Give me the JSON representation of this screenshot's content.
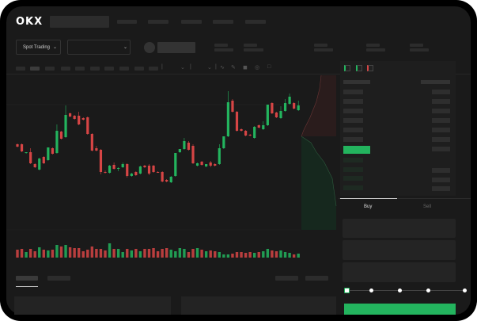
{
  "header": {
    "logo": "OKX"
  },
  "controls": {
    "market_select": "Spot Trading",
    "pair_select": ""
  },
  "order_form": {
    "tabs": [
      "Buy",
      "Sell"
    ],
    "active_tab": "Buy",
    "slider_percent": 0
  },
  "colors": {
    "up": "#23b45e",
    "down": "#d64545",
    "background": "#1a1a1a",
    "bezel": "#000000"
  },
  "icons": [
    "chevron-down-icon",
    "indicator-icon",
    "draw-icon",
    "camera-icon",
    "settings-icon",
    "fullscreen-icon",
    "orderbook-both-icon",
    "orderbook-bids-icon",
    "orderbook-asks-icon"
  ],
  "chart_data": {
    "type": "candlestick",
    "candles_ohlc": [
      [
        118,
        119,
        114,
        115
      ],
      [
        118,
        119,
        108,
        109
      ],
      [
        107,
        108,
        106,
        108
      ],
      [
        108,
        113,
        93,
        94
      ],
      [
        93,
        94,
        88,
        89
      ],
      [
        86,
        101,
        85,
        100
      ],
      [
        102,
        103,
        93,
        94
      ],
      [
        98,
        114,
        97,
        114
      ],
      [
        113,
        114,
        105,
        106
      ],
      [
        107,
        143,
        106,
        135
      ],
      [
        134,
        135,
        124,
        125
      ],
      [
        127,
        167,
        126,
        155
      ],
      [
        157,
        158,
        152,
        153
      ],
      [
        154,
        155,
        149,
        150
      ],
      [
        154,
        159,
        142,
        143
      ],
      [
        151,
        152,
        148,
        149
      ],
      [
        152,
        153,
        130,
        131
      ],
      [
        131,
        132,
        109,
        110
      ],
      [
        113,
        116,
        109,
        110
      ],
      [
        111,
        112,
        80,
        83
      ],
      [
        83,
        85,
        81,
        82
      ],
      [
        82,
        92,
        81,
        91
      ],
      [
        92,
        95,
        86,
        87
      ],
      [
        87,
        89,
        84,
        88
      ],
      [
        89,
        95,
        88,
        93
      ],
      [
        93,
        94,
        76,
        78
      ],
      [
        78,
        82,
        77,
        81
      ],
      [
        83,
        84,
        78,
        79
      ],
      [
        81,
        91,
        80,
        90
      ],
      [
        91,
        92,
        88,
        89
      ],
      [
        91,
        93,
        79,
        81
      ],
      [
        91,
        92,
        82,
        83
      ],
      [
        83,
        84,
        82,
        82
      ],
      [
        83,
        84,
        70,
        71
      ],
      [
        73,
        74,
        70,
        71
      ],
      [
        70,
        78,
        69,
        77
      ],
      [
        78,
        107,
        77,
        107
      ],
      [
        108,
        112,
        107,
        112
      ],
      [
        112,
        126,
        111,
        122
      ],
      [
        120,
        122,
        110,
        111
      ],
      [
        116,
        118,
        93,
        94
      ],
      [
        91,
        95,
        90,
        94
      ],
      [
        96,
        97,
        91,
        92
      ],
      [
        90,
        93,
        89,
        93
      ],
      [
        95,
        97,
        89,
        91
      ],
      [
        93,
        94,
        90,
        91
      ],
      [
        93,
        118,
        92,
        113
      ],
      [
        113,
        128,
        112,
        128
      ],
      [
        128,
        185,
        127,
        171
      ],
      [
        173,
        175,
        158,
        159
      ],
      [
        159,
        160,
        134,
        135
      ],
      [
        137,
        138,
        134,
        135
      ],
      [
        135,
        136,
        128,
        129
      ],
      [
        130,
        131,
        128,
        129
      ],
      [
        126,
        141,
        125,
        140
      ],
      [
        142,
        143,
        138,
        139
      ],
      [
        137,
        147,
        136,
        142
      ],
      [
        142,
        168,
        141,
        168
      ],
      [
        170,
        171,
        156,
        157
      ],
      [
        158,
        159,
        151,
        152
      ],
      [
        151,
        166,
        150,
        160
      ],
      [
        160,
        175,
        159,
        170
      ],
      [
        169,
        182,
        168,
        178
      ],
      [
        170,
        171,
        162,
        163
      ],
      [
        161,
        173,
        160,
        167
      ]
    ],
    "volumes": [
      10,
      11,
      7,
      11,
      8,
      13,
      10,
      9,
      10,
      16,
      14,
      16,
      13,
      12,
      12,
      8,
      10,
      14,
      11,
      11,
      9,
      18,
      11,
      11,
      7,
      11,
      9,
      11,
      8,
      11,
      11,
      12,
      8,
      11,
      12,
      10,
      8,
      12,
      11,
      7,
      11,
      12,
      10,
      8,
      9,
      8,
      7,
      4,
      4,
      5,
      7,
      7,
      6,
      7,
      6,
      7,
      8,
      11,
      9,
      8,
      9,
      7,
      6,
      4,
      5
    ]
  }
}
